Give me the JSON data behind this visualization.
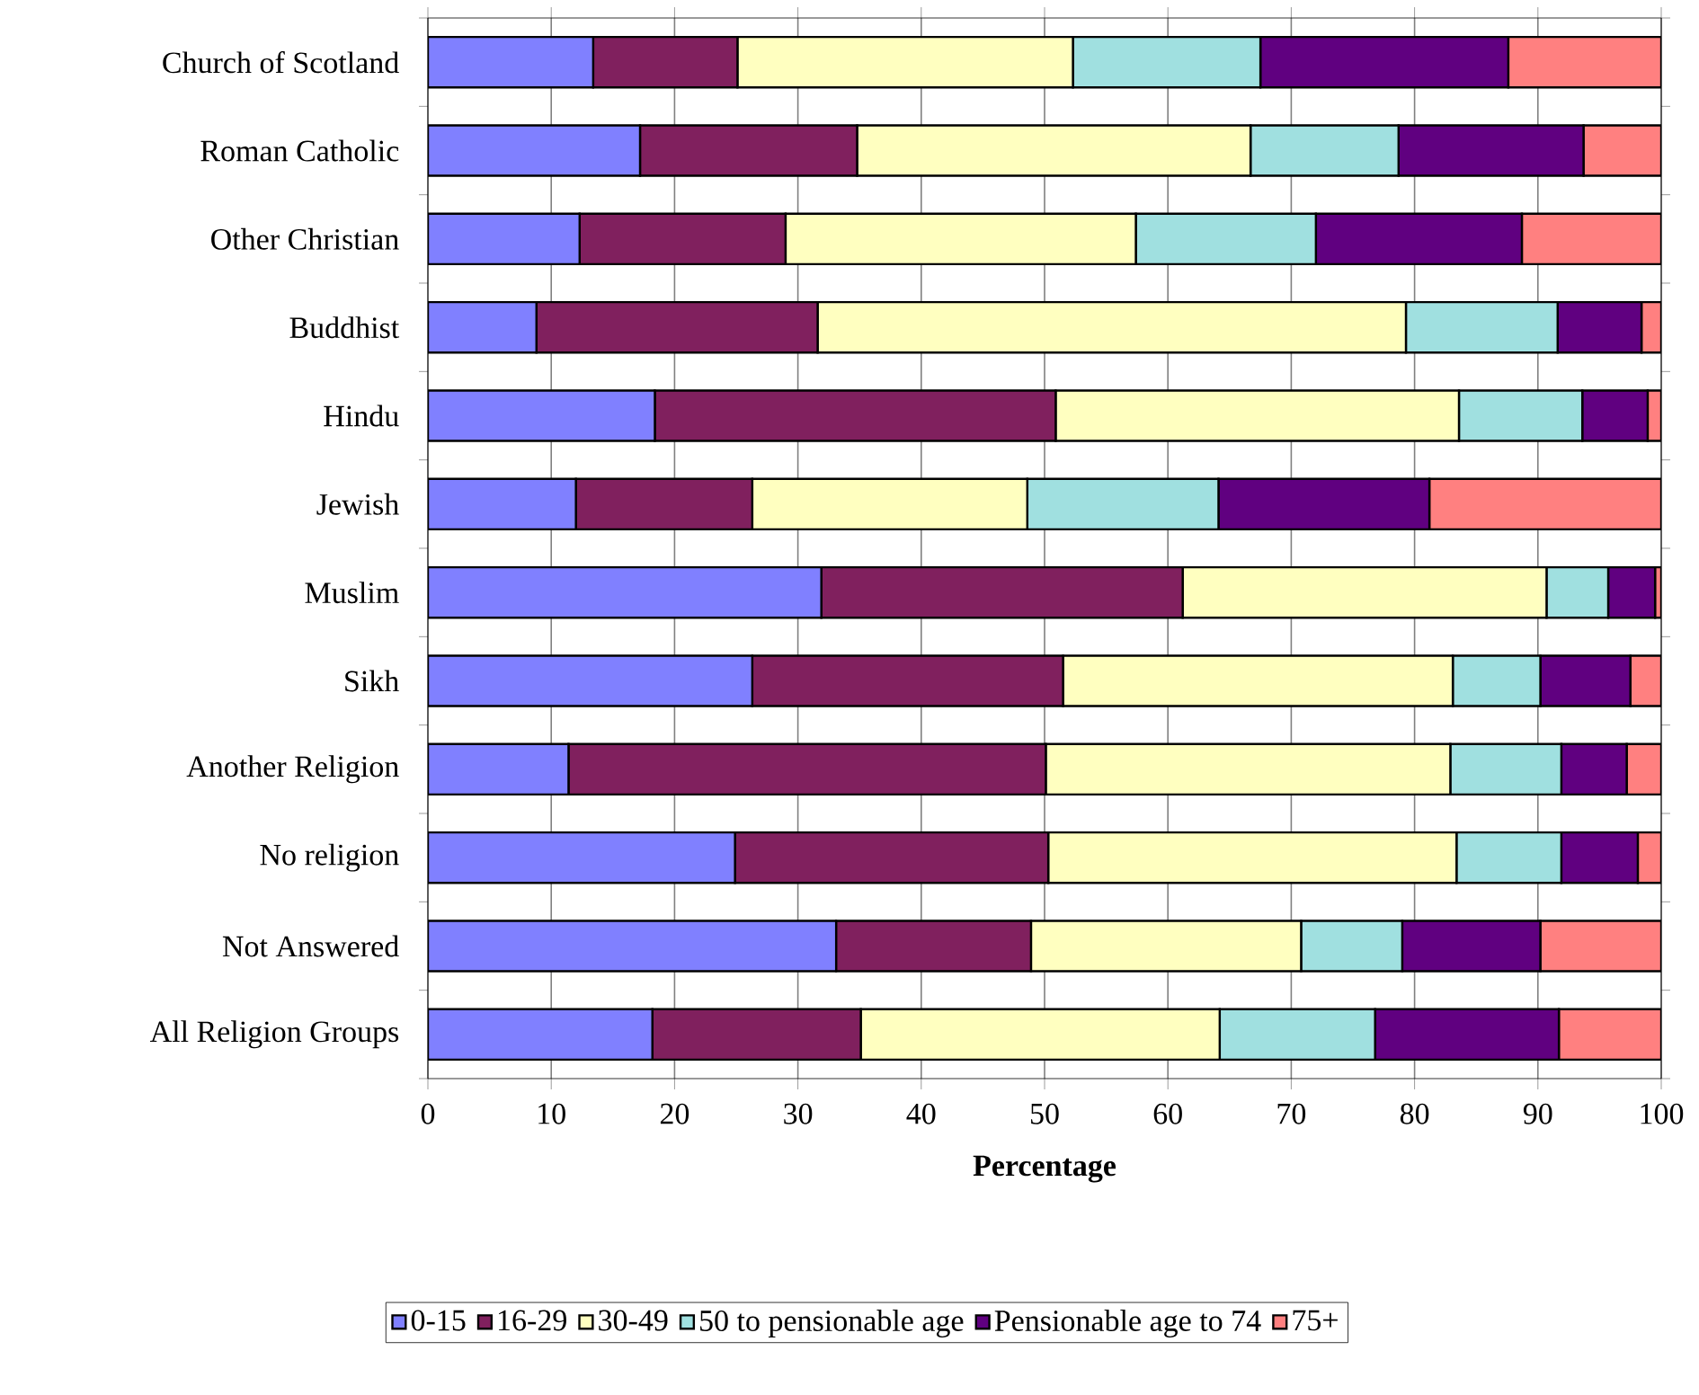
{
  "chart_data": {
    "type": "bar",
    "orientation": "horizontal",
    "stacked": true,
    "xlabel": "Percentage",
    "categories": [
      "Church of Scotland",
      "Roman Catholic",
      "Other Christian",
      "Buddhist",
      "Hindu",
      "Jewish",
      "Muslim",
      "Sikh",
      "Another Religion",
      "No religion",
      "Not Answered",
      "All Religion Groups"
    ],
    "series": [
      {
        "name": "0-15",
        "color": "#8080ff",
        "values": [
          13.4,
          17.2,
          12.3,
          8.8,
          18.4,
          12.0,
          31.9,
          26.3,
          11.4,
          24.9,
          33.1,
          18.2
        ]
      },
      {
        "name": "16-29",
        "color": "#80205e",
        "values": [
          11.7,
          17.6,
          16.7,
          22.8,
          32.5,
          14.3,
          29.3,
          25.2,
          38.7,
          25.4,
          15.8,
          16.9
        ]
      },
      {
        "name": "30-49",
        "color": "#ffffc0",
        "values": [
          27.2,
          31.9,
          28.4,
          47.7,
          32.7,
          22.3,
          29.5,
          31.6,
          32.8,
          33.1,
          21.9,
          29.1
        ]
      },
      {
        "name": "50 to pensionable age",
        "color": "#a0e0e0",
        "values": [
          15.2,
          12.0,
          14.6,
          12.3,
          10.0,
          15.5,
          5.0,
          7.1,
          9.0,
          8.5,
          8.2,
          12.6
        ]
      },
      {
        "name": "Pensionable age to 74",
        "color": "#600080",
        "values": [
          20.1,
          15.0,
          16.7,
          6.8,
          5.3,
          17.1,
          3.8,
          7.3,
          5.3,
          6.2,
          11.2,
          14.9
        ]
      },
      {
        "name": "75+",
        "color": "#ff8080",
        "values": [
          12.4,
          6.3,
          11.3,
          1.6,
          1.1,
          18.8,
          0.5,
          2.5,
          2.8,
          1.9,
          9.8,
          8.3
        ]
      }
    ],
    "xlim": [
      0,
      100
    ],
    "xticks": [
      0,
      10,
      20,
      30,
      40,
      50,
      60,
      70,
      80,
      90,
      100
    ],
    "grid": "x",
    "legend": "bottom"
  }
}
